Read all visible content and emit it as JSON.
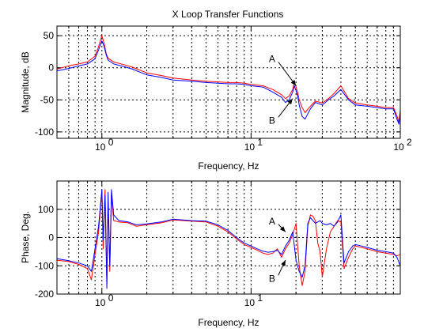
{
  "chart_data": [
    {
      "type": "line",
      "title": "X Loop Transfer Functions",
      "xlabel": "Frequency, Hz",
      "ylabel": "Magnitude, dB",
      "xscale": "log",
      "xlim": [
        0.5,
        100
      ],
      "ylim": [
        -110,
        65
      ],
      "grid": true,
      "xticks": [
        {
          "value": 1,
          "base": "10",
          "exp": "0"
        },
        {
          "value": 10,
          "base": "10",
          "exp": "1"
        },
        {
          "value": 100,
          "base": "10",
          "exp": "2"
        }
      ],
      "yticks": [
        50,
        0,
        -50,
        -100
      ],
      "annotations": [
        {
          "text": "A",
          "x": 14.5,
          "y": 14,
          "arrow_to": [
            20,
            -28
          ]
        },
        {
          "text": "B",
          "x": 14.5,
          "y": -82,
          "arrow_to": [
            19,
            -48
          ]
        }
      ],
      "series": [
        {
          "color": "#ff0000",
          "x": [
            0.5,
            0.6,
            0.7,
            0.8,
            0.9,
            0.95,
            1.0,
            1.03,
            1.07,
            1.1,
            1.2,
            1.4,
            1.6,
            2,
            2.5,
            3,
            4,
            5,
            6,
            7,
            8,
            9,
            10,
            12,
            14,
            16,
            17,
            18,
            19,
            19.5,
            20,
            20.5,
            21,
            22,
            23,
            25,
            27,
            30,
            33,
            36,
            40,
            45,
            50,
            60,
            70,
            80,
            90,
            95,
            98,
            100
          ],
          "y": [
            -2,
            3,
            6,
            9,
            18,
            33,
            50,
            40,
            22,
            15,
            9,
            5,
            1,
            -8,
            -12,
            -16,
            -19,
            -21,
            -22,
            -23,
            -23,
            -24,
            -26,
            -28,
            -34,
            -42,
            -48,
            -44,
            -34,
            -22,
            -30,
            -38,
            -50,
            -62,
            -70,
            -60,
            -52,
            -55,
            -48,
            -40,
            -28,
            -48,
            -55,
            -58,
            -60,
            -62,
            -62,
            -75,
            -85,
            -65
          ]
        },
        {
          "color": "#0000ff",
          "x": [
            0.5,
            0.6,
            0.7,
            0.8,
            0.9,
            0.95,
            1.0,
            1.03,
            1.07,
            1.1,
            1.2,
            1.4,
            1.6,
            2,
            2.5,
            3,
            4,
            5,
            6,
            7,
            8,
            9,
            10,
            12,
            14,
            16,
            17,
            18,
            19,
            19.5,
            20,
            20.5,
            21,
            22,
            23,
            25,
            27,
            30,
            33,
            36,
            40,
            45,
            50,
            60,
            70,
            80,
            90,
            95,
            98,
            100
          ],
          "y": [
            -5,
            -1,
            3,
            6,
            14,
            28,
            42,
            35,
            20,
            12,
            6,
            2,
            -2,
            -11,
            -15,
            -19,
            -21,
            -23,
            -24,
            -25,
            -25,
            -26,
            -28,
            -30,
            -38,
            -46,
            -54,
            -50,
            -38,
            -28,
            -36,
            -44,
            -58,
            -76,
            -80,
            -64,
            -54,
            -58,
            -50,
            -44,
            -34,
            -50,
            -58,
            -60,
            -62,
            -64,
            -64,
            -80,
            -88,
            -70
          ]
        }
      ]
    },
    {
      "type": "line",
      "title": "",
      "xlabel": "Frequency, Hz",
      "ylabel": "Phase, Deg.",
      "xscale": "log",
      "xlim": [
        0.5,
        100
      ],
      "ylim": [
        -200,
        200
      ],
      "grid": true,
      "xticks": [
        {
          "value": 1,
          "base": "10",
          "exp": "0"
        },
        {
          "value": 10,
          "base": "10",
          "exp": "1"
        }
      ],
      "yticks": [
        100,
        0,
        -100,
        -200
      ],
      "annotations": [
        {
          "text": "A",
          "x": 14.5,
          "y": 58,
          "arrow_to": [
            17,
            20
          ]
        },
        {
          "text": "B",
          "x": 14.5,
          "y": -145,
          "arrow_to": [
            17,
            -80
          ]
        }
      ],
      "series": [
        {
          "color": "#ff0000",
          "x": [
            0.5,
            0.6,
            0.7,
            0.8,
            0.85,
            0.9,
            0.95,
            1.0,
            1.02,
            1.05,
            1.08,
            1.1,
            1.13,
            1.16,
            1.2,
            1.3,
            1.5,
            1.7,
            2,
            2.5,
            3,
            4,
            5,
            6,
            7,
            8,
            9,
            10,
            11,
            12,
            13,
            14,
            15,
            16,
            17,
            18,
            19,
            20,
            21,
            22,
            23,
            24,
            25,
            26,
            27,
            28,
            29,
            30,
            32,
            34,
            36,
            38,
            40,
            42,
            45,
            48,
            50,
            55,
            60,
            70,
            80,
            90,
            95,
            100
          ],
          "y": [
            -80,
            -85,
            -95,
            -110,
            -150,
            -60,
            20,
            165,
            -40,
            170,
            -160,
            130,
            -120,
            150,
            60,
            55,
            52,
            40,
            45,
            52,
            62,
            58,
            55,
            40,
            20,
            -5,
            -25,
            -35,
            -45,
            -55,
            -60,
            -55,
            -40,
            -70,
            -40,
            -20,
            10,
            50,
            -100,
            -170,
            -120,
            40,
            80,
            75,
            60,
            -20,
            -50,
            -140,
            -40,
            20,
            40,
            60,
            55,
            -110,
            -70,
            -40,
            -30,
            -35,
            -40,
            -50,
            -55,
            -60,
            -65,
            -60
          ]
        },
        {
          "color": "#0000ff",
          "x": [
            0.5,
            0.6,
            0.7,
            0.8,
            0.85,
            0.9,
            0.95,
            1.0,
            1.02,
            1.05,
            1.08,
            1.1,
            1.13,
            1.16,
            1.2,
            1.3,
            1.5,
            1.7,
            2,
            2.5,
            3,
            4,
            5,
            6,
            7,
            8,
            9,
            10,
            11,
            12,
            13,
            14,
            15,
            16,
            17,
            18,
            19,
            20,
            21,
            22,
            23,
            24,
            25,
            26,
            27,
            28,
            29,
            30,
            32,
            34,
            36,
            38,
            40,
            42,
            45,
            48,
            50,
            55,
            60,
            70,
            80,
            90,
            95,
            100
          ],
          "y": [
            -75,
            -82,
            -90,
            -100,
            -120,
            -40,
            40,
            170,
            -10,
            150,
            -180,
            160,
            -100,
            170,
            80,
            60,
            55,
            45,
            48,
            55,
            65,
            60,
            58,
            45,
            25,
            0,
            -20,
            -30,
            -40,
            -48,
            -52,
            -50,
            -45,
            -60,
            -30,
            -10,
            20,
            -80,
            -120,
            -140,
            -100,
            50,
            70,
            60,
            50,
            55,
            60,
            50,
            45,
            50,
            40,
            55,
            80,
            -90,
            -50,
            -30,
            -25,
            -30,
            -35,
            -45,
            -50,
            -55,
            -70,
            -100
          ]
        }
      ]
    }
  ]
}
